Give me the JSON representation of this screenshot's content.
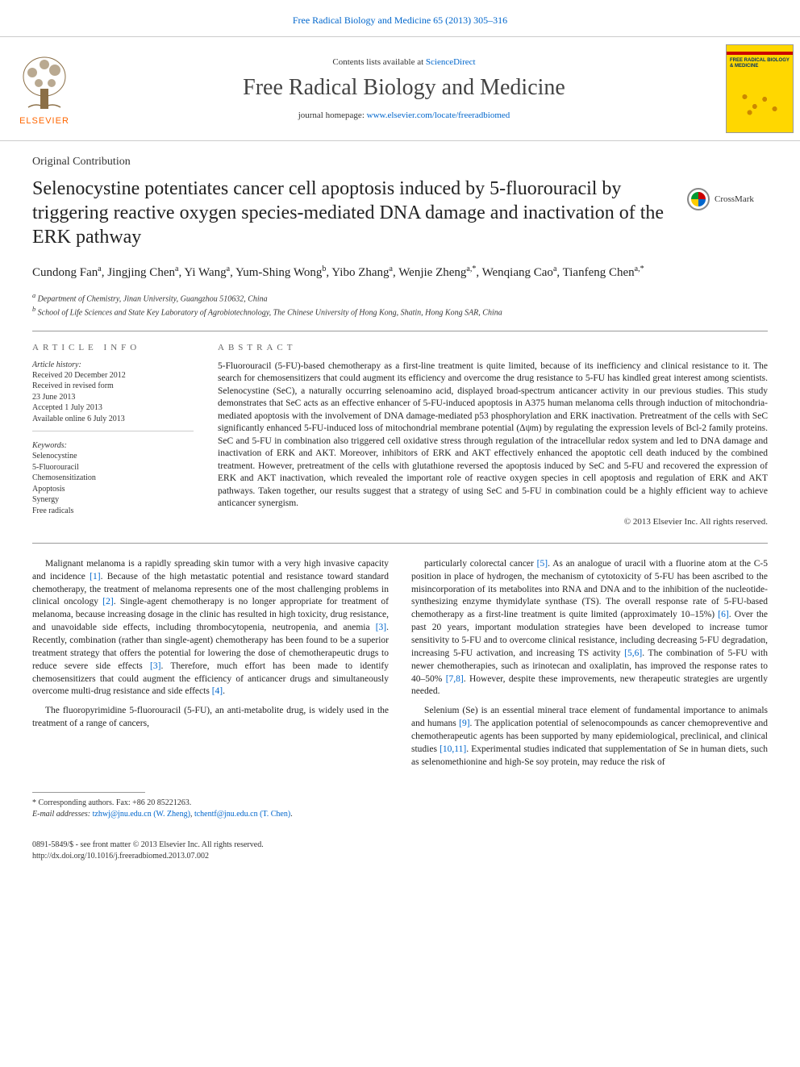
{
  "top_link": "Free Radical Biology and Medicine 65 (2013) 305–316",
  "header": {
    "contents_prefix": "Contents lists available at ",
    "contents_link": "ScienceDirect",
    "journal_name": "Free Radical Biology and Medicine",
    "homepage_prefix": "journal homepage: ",
    "homepage_url": "www.elsevier.com/locate/freeradbiomed",
    "publisher": "ELSEVIER",
    "cover_title": "FREE RADICAL BIOLOGY & MEDICINE"
  },
  "article": {
    "section": "Original Contribution",
    "title": "Selenocystine potentiates cancer cell apoptosis induced by 5-fluorouracil by triggering reactive oxygen species-mediated DNA damage and inactivation of the ERK pathway",
    "crossmark": "CrossMark"
  },
  "authors_html": "Cundong Fan<sup>a</sup>, Jingjing Chen<sup>a</sup>, Yi Wang<sup>a</sup>, Yum-Shing Wong<sup>b</sup>, Yibo Zhang<sup>a</sup>, Wenjie Zheng<sup>a,*</sup>, Wenqiang Cao<sup>a</sup>, Tianfeng Chen<sup>a,*</sup>",
  "affiliations": {
    "a": "Department of Chemistry, Jinan University, Guangzhou 510632, China",
    "b": "School of Life Sciences and State Key Laboratory of Agrobiotechnology, The Chinese University of Hong Kong, Shatin, Hong Kong SAR, China"
  },
  "info": {
    "heading": "ARTICLE INFO",
    "history_label": "Article history:",
    "history": [
      "Received 20 December 2012",
      "Received in revised form",
      "23 June 2013",
      "Accepted 1 July 2013",
      "Available online 6 July 2013"
    ],
    "keywords_label": "Keywords:",
    "keywords": [
      "Selenocystine",
      "5-Fluorouracil",
      "Chemosensitization",
      "Apoptosis",
      "Synergy",
      "Free radicals"
    ]
  },
  "abstract": {
    "heading": "ABSTRACT",
    "text": "5-Fluorouracil (5-FU)-based chemotherapy as a first-line treatment is quite limited, because of its inefficiency and clinical resistance to it. The search for chemosensitizers that could augment its efficiency and overcome the drug resistance to 5-FU has kindled great interest among scientists. Selenocystine (SeC), a naturally occurring selenoamino acid, displayed broad-spectrum anticancer activity in our previous studies. This study demonstrates that SeC acts as an effective enhancer of 5-FU-induced apoptosis in A375 human melanoma cells through induction of mitochondria-mediated apoptosis with the involvement of DNA damage-mediated p53 phosphorylation and ERK inactivation. Pretreatment of the cells with SeC significantly enhanced 5-FU-induced loss of mitochondrial membrane potential (Δψm) by regulating the expression levels of Bcl-2 family proteins. SeC and 5-FU in combination also triggered cell oxidative stress through regulation of the intracellular redox system and led to DNA damage and inactivation of ERK and AKT. Moreover, inhibitors of ERK and AKT effectively enhanced the apoptotic cell death induced by the combined treatment. However, pretreatment of the cells with glutathione reversed the apoptosis induced by SeC and 5-FU and recovered the expression of ERK and AKT inactivation, which revealed the important role of reactive oxygen species in cell apoptosis and regulation of ERK and AKT pathways. Taken together, our results suggest that a strategy of using SeC and 5-FU in combination could be a highly efficient way to achieve anticancer synergism.",
    "copyright": "© 2013 Elsevier Inc. All rights reserved."
  },
  "body": {
    "left": [
      "Malignant melanoma is a rapidly spreading skin tumor with a very high invasive capacity and incidence [1]. Because of the high metastatic potential and resistance toward standard chemotherapy, the treatment of melanoma represents one of the most challenging problems in clinical oncology [2]. Single-agent chemotherapy is no longer appropriate for treatment of melanoma, because increasing dosage in the clinic has resulted in high toxicity, drug resistance, and unavoidable side effects, including thrombocytopenia, neutropenia, and anemia [3]. Recently, combination (rather than single-agent) chemotherapy has been found to be a superior treatment strategy that offers the potential for lowering the dose of chemotherapeutic drugs to reduce severe side effects [3]. Therefore, much effort has been made to identify chemosensitizers that could augment the efficiency of anticancer drugs and simultaneously overcome multi-drug resistance and side effects [4].",
      "The fluoropyrimidine 5-fluorouracil (5-FU), an anti-metabolite drug, is widely used in the treatment of a range of cancers,"
    ],
    "right": [
      "particularly colorectal cancer [5]. As an analogue of uracil with a fluorine atom at the C-5 position in place of hydrogen, the mechanism of cytotoxicity of 5-FU has been ascribed to the misincorporation of its metabolites into RNA and DNA and to the inhibition of the nucleotide-synthesizing enzyme thymidylate synthase (TS). The overall response rate of 5-FU-based chemotherapy as a first-line treatment is quite limited (approximately 10–15%) [6]. Over the past 20 years, important modulation strategies have been developed to increase tumor sensitivity to 5-FU and to overcome clinical resistance, including decreasing 5-FU degradation, increasing 5-FU activation, and increasing TS activity [5,6]. The combination of 5-FU with newer chemotherapies, such as irinotecan and oxaliplatin, has improved the response rates to 40–50% [7,8]. However, despite these improvements, new therapeutic strategies are urgently needed.",
      "Selenium (Se) is an essential mineral trace element of fundamental importance to animals and humans [9]. The application potential of selenocompounds as cancer chemopreventive and chemotherapeutic agents has been supported by many epidemiological, preclinical, and clinical studies [10,11]. Experimental studies indicated that supplementation of Se in human diets, such as selenomethionine and high-Se soy protein, may reduce the risk of"
    ]
  },
  "footer": {
    "corresponding": "* Corresponding authors. Fax: +86 20 85221263.",
    "email_label": "E-mail addresses: ",
    "email1": "tzhwj@jnu.edu.cn (W. Zheng)",
    "email2": "tchentf@jnu.edu.cn (T. Chen)"
  },
  "bottom": {
    "issn": "0891-5849/$ - see front matter © 2013 Elsevier Inc. All rights reserved.",
    "doi": "http://dx.doi.org/10.1016/j.freeradbiomed.2013.07.002"
  },
  "colors": {
    "link": "#0066cc",
    "elsevier": "#ff6600",
    "cover_bg": "#ffd700",
    "cover_stripe": "#cc0000",
    "border": "#cccccc"
  }
}
